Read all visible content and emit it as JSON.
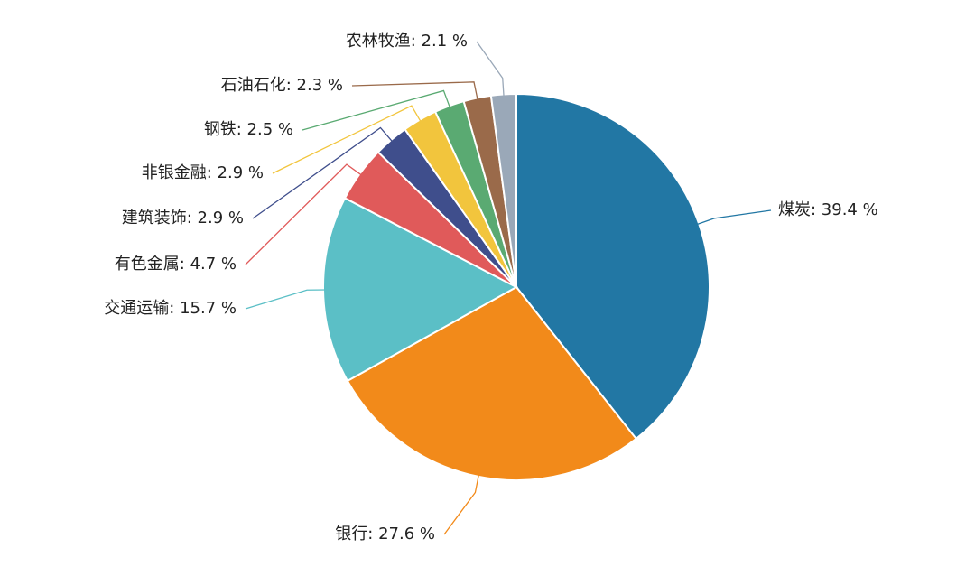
{
  "chart_data": {
    "type": "pie",
    "values": [
      39.4,
      27.6,
      15.7,
      4.7,
      2.9,
      2.9,
      2.5,
      2.3,
      2.1
    ],
    "value_labels": [
      "煤炭: 39.4 %",
      "银行: 27.6 %",
      "交通运输: 15.7 %",
      "有色金属: 4.7 %",
      "建筑装饰: 2.9 %",
      "非银金融: 2.9 %",
      "钢铁: 2.5 %",
      "石油石化: 2.3 %",
      "农林牧渔: 2.1 %"
    ],
    "colors": [
      "#2277a4",
      "#f28a1a",
      "#5bbfc6",
      "#e05a5a",
      "#3f4e8c",
      "#f2c53d",
      "#5aaa72",
      "#9a6a4a",
      "#9aa8b8"
    ]
  }
}
